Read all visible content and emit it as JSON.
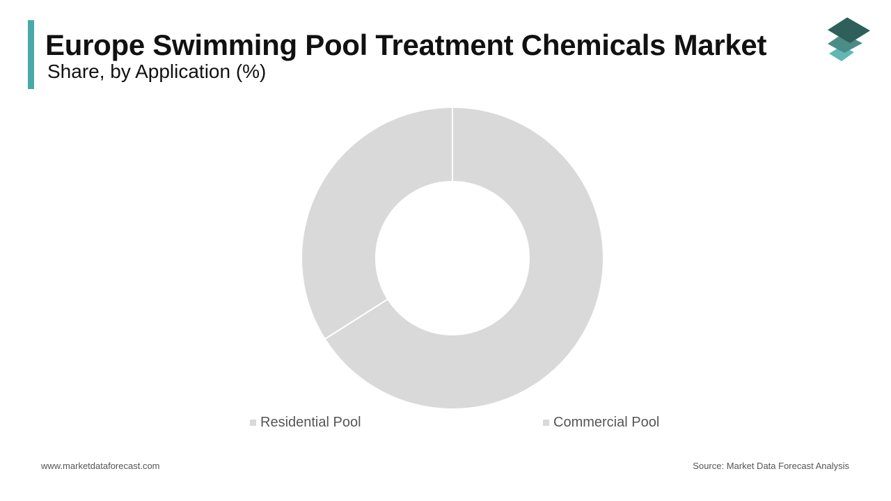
{
  "header": {
    "title": "Europe Swimming Pool Treatment Chemicals Market",
    "subtitle": "Share, by Application (%)"
  },
  "colors": {
    "accent": "#4aa8a8",
    "slice": "#d9d9d9",
    "slice_border": "#ffffff",
    "logo_dark": "#2e5f5a",
    "logo_mid": "#4b8c86",
    "logo_light": "#5fb8b4"
  },
  "logo": {
    "icon": "stacked-layers-icon"
  },
  "chart_data": {
    "type": "pie",
    "donut": true,
    "title": "Europe Swimming Pool Treatment Chemicals Market",
    "subtitle": "Share, by Application (%)",
    "categories": [
      "Residential Pool",
      "Commercial Pool"
    ],
    "values": [
      66,
      34
    ],
    "unit": "%",
    "legend": "bottom",
    "data_labels": false
  },
  "footer": {
    "website": "www.marketdataforecast.com",
    "source": "Source: Market Data Forecast Analysis"
  }
}
